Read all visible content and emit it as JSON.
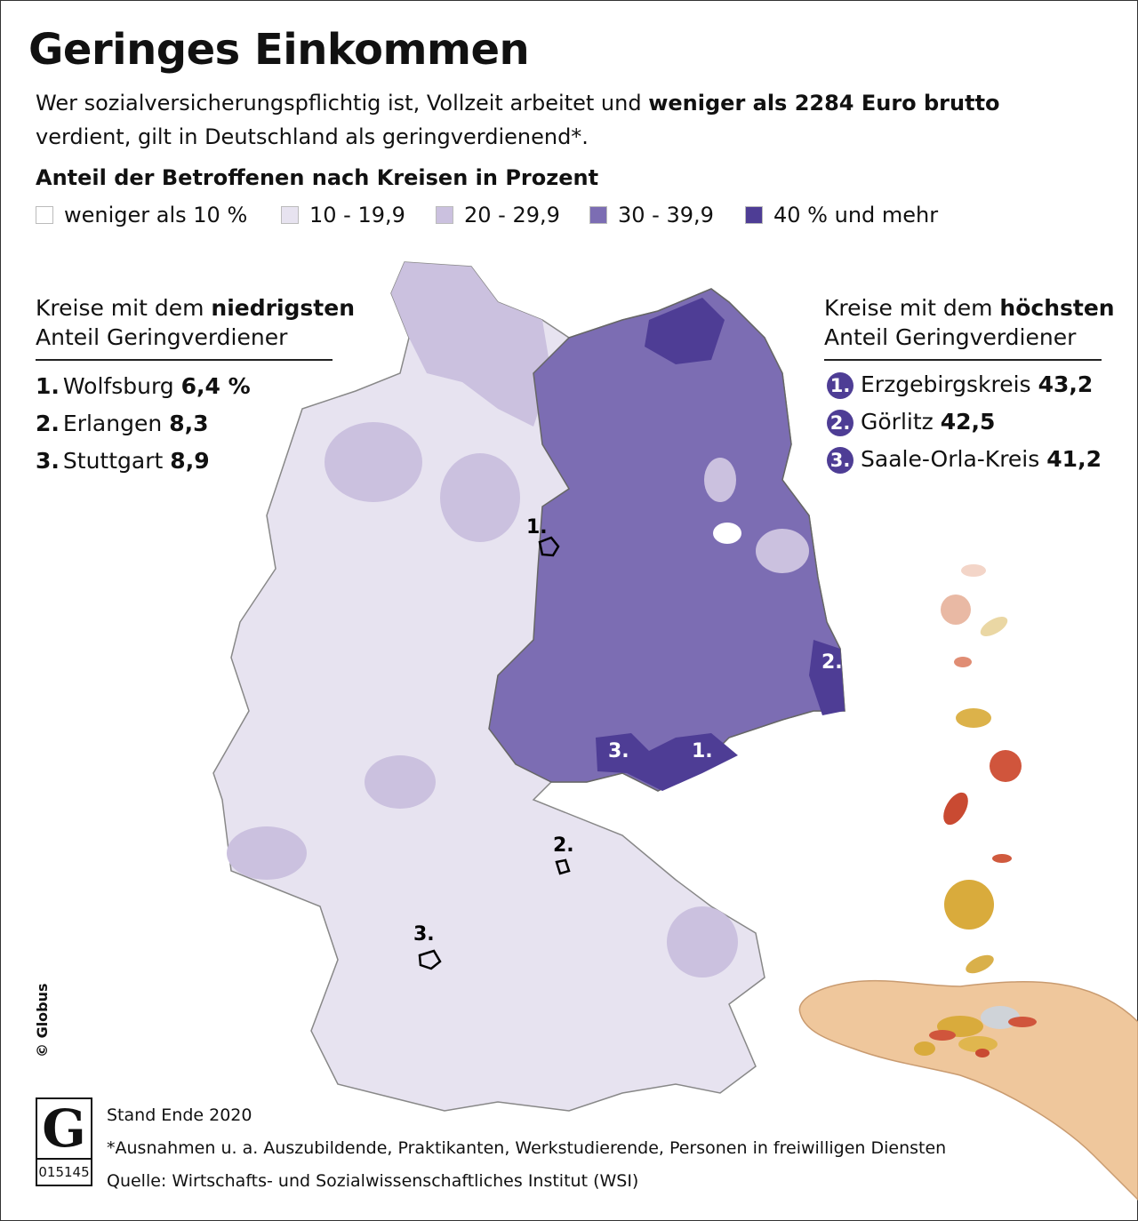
{
  "header": {
    "title": "Geringes Einkommen",
    "intro": [
      "Wer sozialversicherungspflichtig ist, Vollzeit arbeitet und ",
      "weniger als 2284 Euro brutto",
      "verdient, gilt in Deutschland als geringverdienend*."
    ],
    "map_title": "Anteil der Betroffenen nach Kreisen in Prozent"
  },
  "legend": [
    {
      "label": "weniger als 10 %",
      "color": "#ffffff"
    },
    {
      "label": "10 - 19,9",
      "color": "#e7e3f0"
    },
    {
      "label": "20 - 29,9",
      "color": "#cbc1df"
    },
    {
      "label": "30 - 39,9",
      "color": "#7c6db3"
    },
    {
      "label": "40 % und mehr",
      "color": "#4e3d95"
    }
  ],
  "lowest": {
    "heading": [
      "Kreise mit dem ",
      "niedrigsten",
      "Anteil Geringverdiener"
    ],
    "items": [
      {
        "rank": "1.",
        "name": "Wolfsburg",
        "value": "6,4 %"
      },
      {
        "rank": "2.",
        "name": "Erlangen",
        "value": "8,3"
      },
      {
        "rank": "3.",
        "name": "Stuttgart",
        "value": "8,9"
      }
    ]
  },
  "highest": {
    "heading": [
      "Kreise mit dem ",
      "höchsten",
      "Anteil Geringverdiener"
    ],
    "items": [
      {
        "rank": "1.",
        "name": "Erzgebirgskreis",
        "value": "43,2"
      },
      {
        "rank": "2.",
        "name": "Görlitz",
        "value": "42,5"
      },
      {
        "rank": "3.",
        "name": "Saale-Orla-Kreis",
        "value": "41,2"
      }
    ]
  },
  "credit": "© Globus",
  "footer": {
    "logo_number": "015145",
    "lines": [
      "Stand Ende 2020",
      "*Ausnahmen u. a. Auszubildende, Praktikanten, Werkstudierende, Personen in freiwilligen Diensten",
      "Quelle: Wirtschafts- und Sozialwissenschaftliches Institut (WSI)"
    ]
  }
}
